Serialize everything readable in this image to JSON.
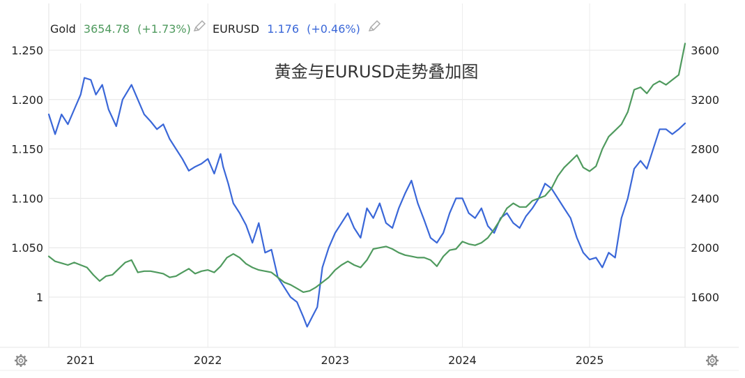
{
  "legend": {
    "gold": {
      "name": "Gold",
      "value": "3654.78",
      "change": "(+1.73%)",
      "color": "#4f9a5e",
      "edit_icon": "pencil-icon"
    },
    "eurusd": {
      "name": "EURUSD",
      "value": "1.176",
      "change": "(+0.46%)",
      "color": "#3a67d8",
      "edit_icon": "pencil-icon"
    }
  },
  "icons": {
    "left": "gear-icon",
    "right": "gear-icon"
  },
  "chart_data": {
    "type": "line",
    "title": "黄金与EURUSD走势叠加图",
    "x_range": [
      2020.75,
      2025.75
    ],
    "x_ticks": [
      2021,
      2022,
      2023,
      2024,
      2025
    ],
    "x_tick_labels": [
      "2021",
      "2022",
      "2023",
      "2024",
      "2025"
    ],
    "left_axis": {
      "ticks": [
        1.0,
        1.05,
        1.1,
        1.15,
        1.2,
        1.25
      ],
      "tick_labels": [
        "1",
        "1.050",
        "1.100",
        "1.150",
        "1.200",
        "1.250"
      ],
      "range": [
        0.95,
        1.265
      ]
    },
    "right_axis": {
      "ticks": [
        1600,
        2000,
        2400,
        2800,
        3200,
        3600
      ],
      "tick_labels": [
        "1600",
        "2000",
        "2400",
        "2800",
        "3200",
        "3600"
      ],
      "range": [
        1200,
        3800
      ]
    },
    "grid": true,
    "legend_position": "top-left",
    "series": [
      {
        "name": "EURUSD",
        "axis": "left",
        "color": "#3a67d8",
        "x": [
          2020.75,
          2020.8,
          2020.85,
          2020.9,
          2020.95,
          2021.0,
          2021.03,
          2021.08,
          2021.12,
          2021.17,
          2021.22,
          2021.28,
          2021.33,
          2021.4,
          2021.45,
          2021.5,
          2021.55,
          2021.6,
          2021.65,
          2021.7,
          2021.75,
          2021.8,
          2021.85,
          2021.9,
          2021.95,
          2022.0,
          2022.05,
          2022.1,
          2022.12,
          2022.16,
          2022.2,
          2022.25,
          2022.3,
          2022.35,
          2022.4,
          2022.45,
          2022.5,
          2022.55,
          2022.6,
          2022.65,
          2022.7,
          2022.75,
          2022.78,
          2022.82,
          2022.86,
          2022.9,
          2022.95,
          2023.0,
          2023.05,
          2023.1,
          2023.15,
          2023.2,
          2023.25,
          2023.3,
          2023.35,
          2023.4,
          2023.45,
          2023.5,
          2023.55,
          2023.6,
          2023.65,
          2023.7,
          2023.75,
          2023.8,
          2023.85,
          2023.9,
          2023.95,
          2024.0,
          2024.05,
          2024.1,
          2024.15,
          2024.2,
          2024.25,
          2024.3,
          2024.35,
          2024.4,
          2024.45,
          2024.5,
          2024.55,
          2024.6,
          2024.65,
          2024.7,
          2024.75,
          2024.8,
          2024.85,
          2024.9,
          2024.95,
          2025.0,
          2025.05,
          2025.1,
          2025.15,
          2025.2,
          2025.25,
          2025.3,
          2025.35,
          2025.4,
          2025.45,
          2025.5,
          2025.55,
          2025.6,
          2025.65,
          2025.7,
          2025.75
        ],
        "y": [
          1.185,
          1.165,
          1.185,
          1.175,
          1.19,
          1.205,
          1.222,
          1.22,
          1.205,
          1.215,
          1.19,
          1.173,
          1.2,
          1.215,
          1.2,
          1.185,
          1.178,
          1.17,
          1.175,
          1.16,
          1.15,
          1.14,
          1.128,
          1.132,
          1.135,
          1.14,
          1.125,
          1.145,
          1.132,
          1.115,
          1.095,
          1.085,
          1.073,
          1.055,
          1.075,
          1.045,
          1.048,
          1.02,
          1.01,
          1.0,
          0.995,
          0.98,
          0.97,
          0.98,
          0.99,
          1.03,
          1.05,
          1.065,
          1.075,
          1.085,
          1.07,
          1.06,
          1.09,
          1.08,
          1.095,
          1.075,
          1.07,
          1.09,
          1.105,
          1.118,
          1.095,
          1.078,
          1.06,
          1.055,
          1.065,
          1.085,
          1.1,
          1.1,
          1.085,
          1.08,
          1.09,
          1.072,
          1.065,
          1.08,
          1.085,
          1.075,
          1.07,
          1.082,
          1.09,
          1.1,
          1.115,
          1.11,
          1.1,
          1.09,
          1.08,
          1.06,
          1.045,
          1.038,
          1.04,
          1.03,
          1.045,
          1.04,
          1.08,
          1.1,
          1.13,
          1.138,
          1.13,
          1.15,
          1.17,
          1.17,
          1.165,
          1.17,
          1.176
        ]
      },
      {
        "name": "Gold",
        "axis": "right",
        "color": "#4f9a5e",
        "x": [
          2020.75,
          2020.8,
          2020.85,
          2020.9,
          2020.95,
          2021.0,
          2021.05,
          2021.1,
          2021.15,
          2021.2,
          2021.25,
          2021.3,
          2021.35,
          2021.4,
          2021.45,
          2021.5,
          2021.55,
          2021.6,
          2021.65,
          2021.7,
          2021.75,
          2021.8,
          2021.85,
          2021.9,
          2021.95,
          2022.0,
          2022.05,
          2022.1,
          2022.15,
          2022.2,
          2022.25,
          2022.3,
          2022.35,
          2022.4,
          2022.45,
          2022.5,
          2022.55,
          2022.6,
          2022.65,
          2022.7,
          2022.75,
          2022.8,
          2022.85,
          2022.9,
          2022.95,
          2023.0,
          2023.05,
          2023.1,
          2023.15,
          2023.2,
          2023.25,
          2023.3,
          2023.35,
          2023.4,
          2023.45,
          2023.5,
          2023.55,
          2023.6,
          2023.65,
          2023.7,
          2023.75,
          2023.8,
          2023.85,
          2023.9,
          2023.95,
          2024.0,
          2024.05,
          2024.1,
          2024.15,
          2024.2,
          2024.25,
          2024.3,
          2024.35,
          2024.4,
          2024.45,
          2024.5,
          2024.55,
          2024.6,
          2024.65,
          2024.7,
          2024.75,
          2024.8,
          2024.85,
          2024.9,
          2024.95,
          2025.0,
          2025.05,
          2025.1,
          2025.15,
          2025.2,
          2025.25,
          2025.3,
          2025.35,
          2025.4,
          2025.45,
          2025.5,
          2025.55,
          2025.6,
          2025.65,
          2025.7,
          2025.75
        ],
        "y": [
          1930,
          1890,
          1875,
          1860,
          1880,
          1860,
          1840,
          1780,
          1730,
          1770,
          1780,
          1830,
          1880,
          1900,
          1800,
          1810,
          1810,
          1800,
          1790,
          1760,
          1770,
          1800,
          1830,
          1790,
          1810,
          1820,
          1800,
          1850,
          1920,
          1950,
          1920,
          1870,
          1840,
          1820,
          1810,
          1800,
          1760,
          1720,
          1700,
          1670,
          1640,
          1650,
          1680,
          1720,
          1760,
          1820,
          1860,
          1890,
          1860,
          1840,
          1900,
          1990,
          2000,
          2010,
          1990,
          1960,
          1940,
          1930,
          1920,
          1920,
          1900,
          1850,
          1930,
          1980,
          1990,
          2050,
          2030,
          2020,
          2040,
          2080,
          2150,
          2230,
          2320,
          2360,
          2330,
          2330,
          2380,
          2400,
          2420,
          2480,
          2580,
          2650,
          2700,
          2750,
          2650,
          2620,
          2660,
          2800,
          2900,
          2950,
          3000,
          3100,
          3280,
          3300,
          3250,
          3320,
          3350,
          3320,
          3360,
          3400,
          3654
        ]
      }
    ]
  }
}
